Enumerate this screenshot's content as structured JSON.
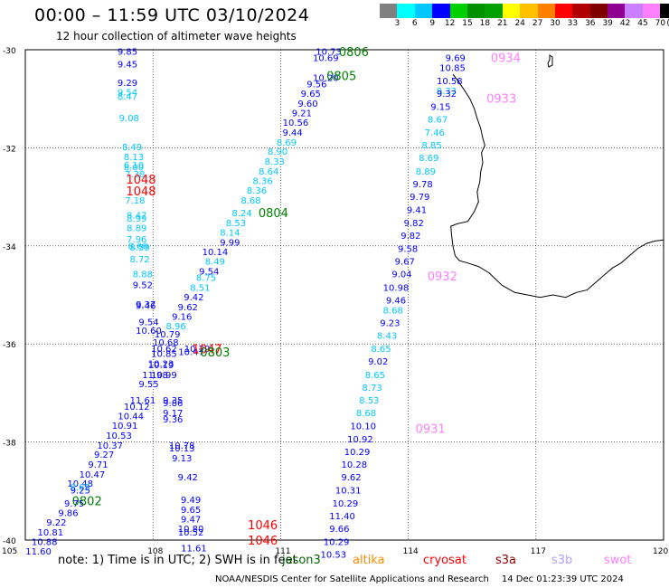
{
  "header": {
    "title": "00:00 – 11:59 UTC 03/10/2024",
    "subtitle": "12 hour collection of altimeter wave heights"
  },
  "legend": {
    "colors": [
      "#808080",
      "#00ffff",
      "#00c8ff",
      "#0000ff",
      "#00d000",
      "#009000",
      "#00a000",
      "#ffff00",
      "#ffc000",
      "#ff8000",
      "#ff0000",
      "#b00000",
      "#800000",
      "#900090",
      "#c880ff",
      "#ff80ff",
      "#000000"
    ],
    "ticks": [
      "3",
      "6",
      "9",
      "12",
      "15",
      "18",
      "21",
      "24",
      "27",
      "30",
      "33",
      "36",
      "39",
      "42",
      "45",
      "70",
      "(ft)"
    ]
  },
  "axes": {
    "lat_labels": [
      "-30",
      "-32",
      "-34",
      "-36",
      "-38",
      "-40"
    ],
    "lon_labels": [
      "105",
      "108",
      "111",
      "114",
      "117",
      "120"
    ]
  },
  "footer": {
    "note": "note:  1) Time is in UTC; 2) SWH is in feet",
    "satellites": [
      {
        "name": "jason3",
        "color": "#006400"
      },
      {
        "name": "altika",
        "color": "#ff8c00"
      },
      {
        "name": "cryosat",
        "color": "#ff0000"
      },
      {
        "name": "s3a",
        "color": "#8b0000"
      },
      {
        "name": "s3b",
        "color": "#b0a0ff"
      },
      {
        "name": "swot",
        "color": "#ff80ff"
      }
    ],
    "credit": "NOAA/NESDIS Center for Satellite Applications and Research",
    "timestamp": "14 Dec 01:23:39 UTC 2024"
  },
  "map_data": {
    "extent": {
      "lon": [
        105,
        120
      ],
      "lat": [
        -40,
        -30
      ]
    },
    "palette": {
      "b": "#0000ff",
      "c": "#00c8ff",
      "g": "#008000",
      "r": "#ff0000",
      "p": "#ff80ff",
      "k": "#000000"
    },
    "track_labels": [
      {
        "text": "0806",
        "lon": 112.72,
        "lat": -30.04,
        "c": "g"
      },
      {
        "text": "0805",
        "lon": 112.43,
        "lat": -30.53,
        "c": "g"
      },
      {
        "text": "0804",
        "lon": 110.83,
        "lat": -33.32,
        "c": "g"
      },
      {
        "text": "0802",
        "lon": 106.45,
        "lat": -39.2,
        "c": "g"
      },
      {
        "text": "1048",
        "lon": 107.72,
        "lat": -32.64,
        "c": "r"
      },
      {
        "text": "1048",
        "lon": 107.72,
        "lat": -32.88,
        "c": "r"
      },
      {
        "text": "1047",
        "lon": 109.27,
        "lat": -36.1,
        "c": "r"
      },
      {
        "text": "1046",
        "lon": 110.58,
        "lat": -39.69,
        "c": "r"
      },
      {
        "text": "1046",
        "lon": 110.58,
        "lat": -40.0,
        "c": "r"
      },
      {
        "text": "0803",
        "lon": 109.46,
        "lat": -36.16,
        "c": "g"
      },
      {
        "text": "0934",
        "lon": 116.29,
        "lat": -30.16,
        "c": "p"
      },
      {
        "text": "0933",
        "lon": 116.19,
        "lat": -30.99,
        "c": "p"
      },
      {
        "text": "0932",
        "lon": 114.8,
        "lat": -34.61,
        "c": "p"
      },
      {
        "text": "0931",
        "lon": 114.52,
        "lat": -37.72,
        "c": "p"
      }
    ],
    "points": [
      {
        "v": "9.85",
        "lon": 107.4,
        "lat": -30.03,
        "c": "b"
      },
      {
        "v": "9.45",
        "lon": 107.4,
        "lat": -30.29,
        "c": "b"
      },
      {
        "v": "9.29",
        "lon": 107.4,
        "lat": -30.66,
        "c": "b"
      },
      {
        "v": "9.54",
        "lon": 107.4,
        "lat": -30.86,
        "c": "c"
      },
      {
        "v": "8.47",
        "lon": 107.4,
        "lat": -30.94,
        "c": "c"
      },
      {
        "v": "9.08",
        "lon": 107.44,
        "lat": -31.38,
        "c": "c"
      },
      {
        "v": "8.49",
        "lon": 107.51,
        "lat": -31.97,
        "c": "c"
      },
      {
        "v": "8.13",
        "lon": 107.55,
        "lat": -32.18,
        "c": "c"
      },
      {
        "v": "8.00",
        "lon": 107.55,
        "lat": -32.39,
        "c": "c"
      },
      {
        "v": "6.10",
        "lon": 107.55,
        "lat": -32.34,
        "c": "c"
      },
      {
        "v": "7.38",
        "lon": 107.58,
        "lat": -32.53,
        "c": "c"
      },
      {
        "v": "7.18",
        "lon": 107.58,
        "lat": -33.06,
        "c": "c"
      },
      {
        "v": "8.47",
        "lon": 107.62,
        "lat": -33.37,
        "c": "c"
      },
      {
        "v": "8.99",
        "lon": 107.62,
        "lat": -33.43,
        "c": "c"
      },
      {
        "v": "8.89",
        "lon": 107.62,
        "lat": -33.63,
        "c": "c"
      },
      {
        "v": "7.96",
        "lon": 107.62,
        "lat": -33.86,
        "c": "c"
      },
      {
        "v": "8.66",
        "lon": 107.65,
        "lat": -33.99,
        "c": "c"
      },
      {
        "v": "8.59",
        "lon": 107.69,
        "lat": -34.02,
        "c": "c"
      },
      {
        "v": "8.72",
        "lon": 107.69,
        "lat": -34.26,
        "c": "c"
      },
      {
        "v": "8.88",
        "lon": 107.76,
        "lat": -34.57,
        "c": "c"
      },
      {
        "v": "9.52",
        "lon": 107.76,
        "lat": -34.79,
        "c": "b"
      },
      {
        "v": "9.37",
        "lon": 107.83,
        "lat": -35.18,
        "c": "b"
      },
      {
        "v": "9.46",
        "lon": 107.83,
        "lat": -35.21,
        "c": "b"
      },
      {
        "v": "9.54",
        "lon": 107.9,
        "lat": -35.54,
        "c": "b"
      },
      {
        "v": "10.60",
        "lon": 107.9,
        "lat": -35.72,
        "c": "b"
      },
      {
        "v": "10.79",
        "lon": 108.34,
        "lat": -35.79,
        "c": "b"
      },
      {
        "v": "10.68",
        "lon": 108.3,
        "lat": -35.96,
        "c": "b"
      },
      {
        "v": "10.62",
        "lon": 108.26,
        "lat": -36.09,
        "c": "b"
      },
      {
        "v": "10.85",
        "lon": 108.26,
        "lat": -36.19,
        "c": "b"
      },
      {
        "v": "10.23",
        "lon": 108.19,
        "lat": -36.39,
        "c": "b"
      },
      {
        "v": "10.19",
        "lon": 108.19,
        "lat": -36.42,
        "c": "b"
      },
      {
        "v": "11.98",
        "lon": 108.05,
        "lat": -36.62,
        "c": "b"
      },
      {
        "v": "10.99",
        "lon": 108.26,
        "lat": -36.62,
        "c": "b"
      },
      {
        "v": "9.55",
        "lon": 107.9,
        "lat": -36.81,
        "c": "b"
      },
      {
        "v": "11.61",
        "lon": 107.76,
        "lat": -37.14,
        "c": "b"
      },
      {
        "v": "9.35",
        "lon": 108.47,
        "lat": -37.14,
        "c": "b"
      },
      {
        "v": "9.86",
        "lon": 108.47,
        "lat": -37.2,
        "c": "b"
      },
      {
        "v": "9.17",
        "lon": 108.47,
        "lat": -37.4,
        "c": "b"
      },
      {
        "v": "10.12",
        "lon": 107.62,
        "lat": -37.27,
        "c": "b"
      },
      {
        "v": "9.36",
        "lon": 108.47,
        "lat": -37.53,
        "c": "b"
      },
      {
        "v": "10.44",
        "lon": 107.48,
        "lat": -37.46,
        "c": "b"
      },
      {
        "v": "10.91",
        "lon": 107.34,
        "lat": -37.66,
        "c": "b"
      },
      {
        "v": "10.53",
        "lon": 107.2,
        "lat": -37.86,
        "c": "b"
      },
      {
        "v": "10.37",
        "lon": 106.99,
        "lat": -38.06,
        "c": "b"
      },
      {
        "v": "10.78",
        "lon": 108.68,
        "lat": -38.06,
        "c": "b"
      },
      {
        "v": "10.13",
        "lon": 108.68,
        "lat": -38.12,
        "c": "b"
      },
      {
        "v": "9.27",
        "lon": 106.85,
        "lat": -38.25,
        "c": "b"
      },
      {
        "v": "9.13",
        "lon": 108.68,
        "lat": -38.32,
        "c": "b"
      },
      {
        "v": "9.71",
        "lon": 106.71,
        "lat": -38.45,
        "c": "b"
      },
      {
        "v": "10.47",
        "lon": 106.57,
        "lat": -38.65,
        "c": "b"
      },
      {
        "v": "9.42",
        "lon": 108.82,
        "lat": -38.71,
        "c": "b"
      },
      {
        "v": "10.48",
        "lon": 106.29,
        "lat": -38.84,
        "c": "b"
      },
      {
        "v": "8.65",
        "lon": 106.29,
        "lat": -38.91,
        "c": "c"
      },
      {
        "v": "9.25",
        "lon": 106.29,
        "lat": -38.98,
        "c": "b"
      },
      {
        "v": "9.49",
        "lon": 108.89,
        "lat": -39.17,
        "c": "b"
      },
      {
        "v": "9.75",
        "lon": 106.15,
        "lat": -39.24,
        "c": "b"
      },
      {
        "v": "9.65",
        "lon": 108.89,
        "lat": -39.37,
        "c": "b"
      },
      {
        "v": "9.86",
        "lon": 106.01,
        "lat": -39.44,
        "c": "b"
      },
      {
        "v": "9.47",
        "lon": 108.89,
        "lat": -39.57,
        "c": "b"
      },
      {
        "v": "9.22",
        "lon": 105.73,
        "lat": -39.63,
        "c": "b"
      },
      {
        "v": "10.80",
        "lon": 108.89,
        "lat": -39.76,
        "c": "b"
      },
      {
        "v": "10.81",
        "lon": 105.59,
        "lat": -39.83,
        "c": "b"
      },
      {
        "v": "10.52",
        "lon": 108.89,
        "lat": -39.83,
        "c": "b"
      },
      {
        "v": "10.88",
        "lon": 105.45,
        "lat": -40.03,
        "c": "b"
      },
      {
        "v": "11.61",
        "lon": 108.96,
        "lat": -40.16,
        "c": "b"
      },
      {
        "v": "11.60",
        "lon": 105.31,
        "lat": -40.22,
        "c": "b"
      },
      {
        "v": "10.73",
        "lon": 112.13,
        "lat": -30.03,
        "c": "b"
      },
      {
        "v": "10.69",
        "lon": 112.06,
        "lat": -30.16,
        "c": "b"
      },
      {
        "v": "10.20",
        "lon": 112.06,
        "lat": -30.56,
        "c": "b"
      },
      {
        "v": "9.56",
        "lon": 111.85,
        "lat": -30.69,
        "c": "b"
      },
      {
        "v": "9.65",
        "lon": 111.71,
        "lat": -30.89,
        "c": "b"
      },
      {
        "v": "9.60",
        "lon": 111.64,
        "lat": -31.09,
        "c": "b"
      },
      {
        "v": "9.21",
        "lon": 111.5,
        "lat": -31.28,
        "c": "b"
      },
      {
        "v": "10.56",
        "lon": 111.35,
        "lat": -31.48,
        "c": "b"
      },
      {
        "v": "9.44",
        "lon": 111.28,
        "lat": -31.68,
        "c": "b"
      },
      {
        "v": "8.69",
        "lon": 111.14,
        "lat": -31.88,
        "c": "c"
      },
      {
        "v": "8.90",
        "lon": 110.93,
        "lat": -32.07,
        "c": "c"
      },
      {
        "v": "8.33",
        "lon": 110.86,
        "lat": -32.27,
        "c": "c"
      },
      {
        "v": "8.64",
        "lon": 110.72,
        "lat": -32.47,
        "c": "c"
      },
      {
        "v": "8.36",
        "lon": 110.58,
        "lat": -32.67,
        "c": "c"
      },
      {
        "v": "8.36",
        "lon": 110.44,
        "lat": -32.86,
        "c": "c"
      },
      {
        "v": "8.68",
        "lon": 110.3,
        "lat": -33.06,
        "c": "c"
      },
      {
        "v": "8.24",
        "lon": 110.09,
        "lat": -33.32,
        "c": "c"
      },
      {
        "v": "8.53",
        "lon": 109.95,
        "lat": -33.52,
        "c": "c"
      },
      {
        "v": "8.14",
        "lon": 109.81,
        "lat": -33.72,
        "c": "c"
      },
      {
        "v": "9.99",
        "lon": 109.81,
        "lat": -33.92,
        "c": "b"
      },
      {
        "v": "10.14",
        "lon": 109.46,
        "lat": -34.11,
        "c": "b"
      },
      {
        "v": "8.49",
        "lon": 109.46,
        "lat": -34.31,
        "c": "c"
      },
      {
        "v": "9.54",
        "lon": 109.32,
        "lat": -34.51,
        "c": "b"
      },
      {
        "v": "8.75",
        "lon": 109.25,
        "lat": -34.64,
        "c": "c"
      },
      {
        "v": "8.51",
        "lon": 109.11,
        "lat": -34.84,
        "c": "c"
      },
      {
        "v": "9.42",
        "lon": 108.96,
        "lat": -35.04,
        "c": "b"
      },
      {
        "v": "9.62",
        "lon": 108.82,
        "lat": -35.24,
        "c": "b"
      },
      {
        "v": "9.16",
        "lon": 108.68,
        "lat": -35.43,
        "c": "b"
      },
      {
        "v": "8.96",
        "lon": 108.54,
        "lat": -35.63,
        "c": "c"
      },
      {
        "v": "10.29",
        "lon": 109.04,
        "lat": -36.09,
        "c": "b"
      },
      {
        "v": "10.47",
        "lon": 108.9,
        "lat": -36.15,
        "c": "b"
      },
      {
        "v": "9.69",
        "lon": 115.11,
        "lat": -30.16,
        "c": "b"
      },
      {
        "v": "10.85",
        "lon": 115.04,
        "lat": -30.36,
        "c": "b"
      },
      {
        "v": "10.58",
        "lon": 114.97,
        "lat": -30.63,
        "c": "b"
      },
      {
        "v": "9.33",
        "lon": 114.9,
        "lat": -30.83,
        "c": "c"
      },
      {
        "v": "9.32",
        "lon": 114.9,
        "lat": -30.89,
        "c": "b"
      },
      {
        "v": "9.15",
        "lon": 114.76,
        "lat": -31.15,
        "c": "b"
      },
      {
        "v": "8.67",
        "lon": 114.69,
        "lat": -31.41,
        "c": "c"
      },
      {
        "v": "7.46",
        "lon": 114.62,
        "lat": -31.68,
        "c": "c"
      },
      {
        "v": "8.85",
        "lon": 114.55,
        "lat": -31.94,
        "c": "c"
      },
      {
        "v": "8.69",
        "lon": 114.48,
        "lat": -32.2,
        "c": "c"
      },
      {
        "v": "8.89",
        "lon": 114.41,
        "lat": -32.47,
        "c": "c"
      },
      {
        "v": "9.78",
        "lon": 114.34,
        "lat": -32.73,
        "c": "b"
      },
      {
        "v": "9.79",
        "lon": 114.27,
        "lat": -32.99,
        "c": "b"
      },
      {
        "v": "9.41",
        "lon": 114.2,
        "lat": -33.26,
        "c": "b"
      },
      {
        "v": "9.82",
        "lon": 114.13,
        "lat": -33.52,
        "c": "b"
      },
      {
        "v": "9.82",
        "lon": 114.06,
        "lat": -33.78,
        "c": "b"
      },
      {
        "v": "9.58",
        "lon": 113.99,
        "lat": -34.05,
        "c": "b"
      },
      {
        "v": "9.67",
        "lon": 113.92,
        "lat": -34.31,
        "c": "b"
      },
      {
        "v": "9.04",
        "lon": 113.85,
        "lat": -34.57,
        "c": "b"
      },
      {
        "v": "10.98",
        "lon": 113.71,
        "lat": -34.84,
        "c": "b"
      },
      {
        "v": "9.46",
        "lon": 113.71,
        "lat": -35.1,
        "c": "b"
      },
      {
        "v": "8.68",
        "lon": 113.64,
        "lat": -35.3,
        "c": "c"
      },
      {
        "v": "9.23",
        "lon": 113.57,
        "lat": -35.56,
        "c": "b"
      },
      {
        "v": "8.43",
        "lon": 113.5,
        "lat": -35.82,
        "c": "c"
      },
      {
        "v": "8.65",
        "lon": 113.36,
        "lat": -36.09,
        "c": "c"
      },
      {
        "v": "9.02",
        "lon": 113.29,
        "lat": -36.35,
        "c": "b"
      },
      {
        "v": "8.65",
        "lon": 113.22,
        "lat": -36.62,
        "c": "c"
      },
      {
        "v": "8.73",
        "lon": 113.15,
        "lat": -36.88,
        "c": "c"
      },
      {
        "v": "8.53",
        "lon": 113.08,
        "lat": -37.14,
        "c": "c"
      },
      {
        "v": "8.68",
        "lon": 113.01,
        "lat": -37.4,
        "c": "c"
      },
      {
        "v": "10.10",
        "lon": 112.94,
        "lat": -37.67,
        "c": "b"
      },
      {
        "v": "10.92",
        "lon": 112.87,
        "lat": -37.93,
        "c": "b"
      },
      {
        "v": "10.29",
        "lon": 112.8,
        "lat": -38.19,
        "c": "b"
      },
      {
        "v": "10.28",
        "lon": 112.73,
        "lat": -38.45,
        "c": "b"
      },
      {
        "v": "9.62",
        "lon": 112.66,
        "lat": -38.71,
        "c": "b"
      },
      {
        "v": "10.31",
        "lon": 112.59,
        "lat": -38.98,
        "c": "b"
      },
      {
        "v": "10.29",
        "lon": 112.52,
        "lat": -39.24,
        "c": "b"
      },
      {
        "v": "11.40",
        "lon": 112.45,
        "lat": -39.5,
        "c": "b"
      },
      {
        "v": "9.66",
        "lon": 112.38,
        "lat": -39.76,
        "c": "b"
      },
      {
        "v": "10.29",
        "lon": 112.31,
        "lat": -40.03,
        "c": "b"
      },
      {
        "v": "10.53",
        "lon": 112.24,
        "lat": -40.29,
        "c": "b"
      }
    ],
    "coastline": [
      [
        115.05,
        -30.5
      ],
      [
        115.18,
        -30.65
      ],
      [
        115.3,
        -30.8
      ],
      [
        115.45,
        -31.0
      ],
      [
        115.55,
        -31.2
      ],
      [
        115.62,
        -31.4
      ],
      [
        115.7,
        -31.6
      ],
      [
        115.75,
        -31.8
      ],
      [
        115.8,
        -31.95
      ],
      [
        115.72,
        -32.1
      ],
      [
        115.75,
        -32.3
      ],
      [
        115.7,
        -32.5
      ],
      [
        115.68,
        -32.7
      ],
      [
        115.62,
        -32.9
      ],
      [
        115.65,
        -33.1
      ],
      [
        115.55,
        -33.3
      ],
      [
        115.4,
        -33.5
      ],
      [
        115.15,
        -33.55
      ],
      [
        115.0,
        -33.6
      ],
      [
        115.02,
        -33.8
      ],
      [
        115.05,
        -34.0
      ],
      [
        115.1,
        -34.2
      ],
      [
        115.2,
        -34.3
      ],
      [
        115.4,
        -34.35
      ],
      [
        115.65,
        -34.42
      ],
      [
        115.9,
        -34.55
      ],
      [
        116.2,
        -34.8
      ],
      [
        116.5,
        -34.95
      ],
      [
        116.8,
        -35.0
      ],
      [
        117.1,
        -35.05
      ],
      [
        117.4,
        -35.0
      ],
      [
        117.7,
        -35.05
      ],
      [
        117.95,
        -34.95
      ],
      [
        118.2,
        -34.9
      ],
      [
        118.4,
        -34.75
      ],
      [
        118.6,
        -34.6
      ],
      [
        118.8,
        -34.45
      ],
      [
        119.0,
        -34.35
      ],
      [
        119.2,
        -34.2
      ],
      [
        119.4,
        -34.05
      ],
      [
        119.6,
        -33.95
      ],
      [
        119.8,
        -33.9
      ],
      [
        120.0,
        -33.88
      ]
    ]
  }
}
